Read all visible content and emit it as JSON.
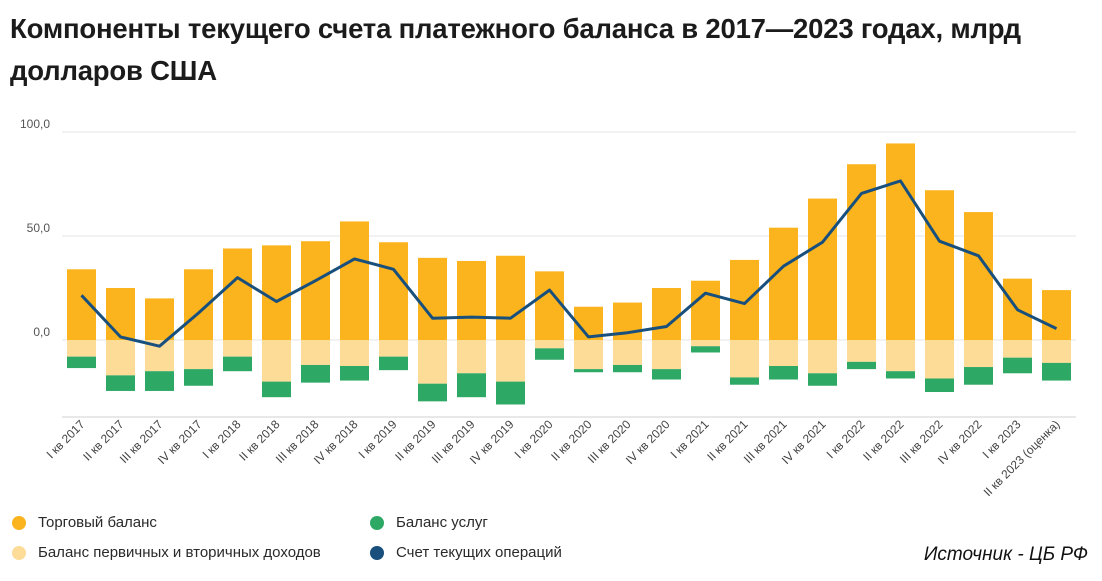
{
  "title": "Компоненты текущего счета платежного баланса в 2017—2023 годах, млрд долларов США",
  "source": "Источник - ЦБ РФ",
  "colors": {
    "trade": "#FBB41D",
    "income": "#FDDC97",
    "services": "#2EA865",
    "current": "#184F7D"
  },
  "legend": [
    {
      "label": "Торговый баланс",
      "color": "#FBB41D"
    },
    {
      "label": "Баланс первичных и вторичных доходов",
      "color": "#FDDC97"
    },
    {
      "label": "Баланс услуг",
      "color": "#2EA865"
    },
    {
      "label": "Счет текущих операций",
      "color": "#184F7D"
    }
  ],
  "chart_data": {
    "type": "bar",
    "stacked": true,
    "title": "Компоненты текущего счета платежного баланса в 2017—2023 годах, млрд долларов США",
    "categories": [
      "I кв 2017",
      "II кв 2017",
      "III кв 2017",
      "IV кв 2017",
      "I кв 2018",
      "II кв 2018",
      "III кв 2018",
      "IV кв 2018",
      "I кв 2019",
      "II кв 2019",
      "III кв 2019",
      "IV кв 2019",
      "I кв 2020",
      "II кв 2020",
      "III кв 2020",
      "IV кв 2020",
      "I кв 2021",
      "II кв 2021",
      "III кв 2021",
      "IV кв 2021",
      "I кв 2022",
      "II кв 2022",
      "III кв 2022",
      "IV кв 2022",
      "I кв 2023",
      "II кв 2023 (оценка)"
    ],
    "ylim": [
      -37,
      100
    ],
    "yticks": [
      0,
      50,
      100
    ],
    "ytick_labels": [
      "0,0",
      "50,0",
      "100,0"
    ],
    "grid": true,
    "legend_position": "bottom",
    "series": [
      {
        "name": "Торговый баланс",
        "type": "bar",
        "values": [
          34,
          25,
          20,
          34,
          44,
          45.5,
          47.5,
          57,
          47,
          39.5,
          38,
          40.5,
          33,
          16,
          18,
          25,
          28.5,
          38.5,
          54,
          68,
          84.5,
          94.5,
          72,
          61.5,
          29.5,
          24
        ]
      },
      {
        "name": "Баланс первичных и вторичных доходов",
        "type": "bar",
        "values": [
          -8,
          -17,
          -15,
          -14,
          -8,
          -20,
          -12,
          -12.5,
          -8,
          -21,
          -16,
          -20,
          -4,
          -14,
          -12,
          -14,
          -3,
          -18,
          -12.5,
          -16,
          -10.5,
          -15,
          -18.5,
          -13,
          -8.5,
          -11
        ]
      },
      {
        "name": "Баланс услуг",
        "type": "bar",
        "values": [
          -5.5,
          -7.5,
          -9.5,
          -8,
          -7,
          -7.5,
          -8.5,
          -7,
          -6.5,
          -8.5,
          -11.5,
          -11,
          -5.5,
          -1.5,
          -3.5,
          -5,
          -3,
          -3.5,
          -6.5,
          -6,
          -3.5,
          -3.5,
          -6.5,
          -8.5,
          -7.5,
          -8.5
        ]
      },
      {
        "name": "Счет текущих операций",
        "type": "line",
        "values": [
          21.5,
          1.5,
          -3,
          13,
          30,
          18.5,
          28.5,
          39,
          34,
          10.5,
          11,
          10.5,
          24,
          1.5,
          3.5,
          6.5,
          22.5,
          17.5,
          35.5,
          47,
          70.5,
          76.5,
          47.5,
          40.5,
          14.5,
          5.5
        ]
      }
    ]
  }
}
